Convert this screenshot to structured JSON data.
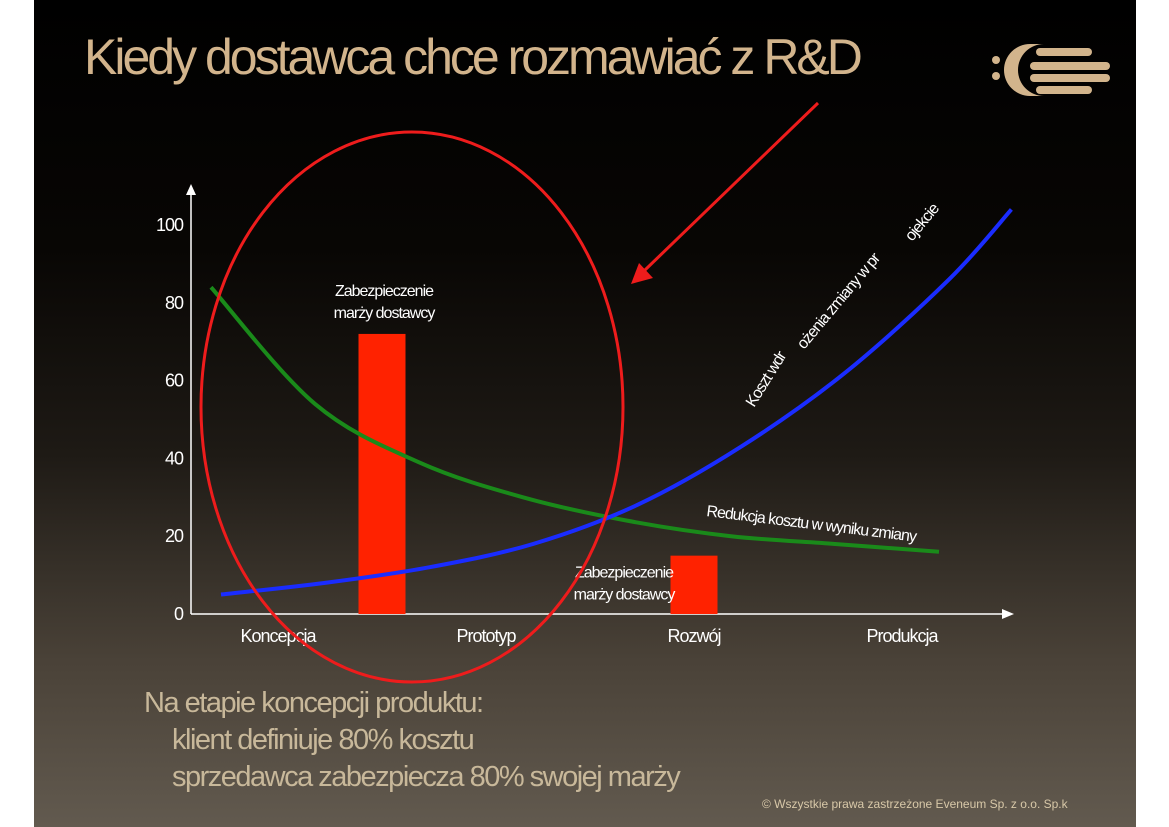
{
  "slide": {
    "title": "Kiedy dostawca chce rozmawiać z R&D",
    "bottom_lines": [
      "Na etapie koncepcji produktu:",
      "klient definiuje 80% kosztu",
      "sprzedawca zabezpiecza 80% swojej marży"
    ],
    "footer": "©  Wszystkie prawa zastrzeżone Eveneum Sp. z o.o. Sp.k",
    "colors": {
      "title": "#d2b48c",
      "bar": "#ff2200",
      "green_curve": "#1a8a1a",
      "blue_curve": "#1a2cff",
      "ellipse": "#ee1c1c",
      "arrow": "#ee1c1c",
      "logo": "#d2b48c"
    },
    "logo_icon": "eveneum-logo-icon"
  },
  "chart_data": {
    "type": "line",
    "title": "",
    "xlabel": "",
    "ylabel": "",
    "categories": [
      "Koncepcja",
      "Prototyp",
      "Rozwój",
      "Produkcja"
    ],
    "ylim": [
      0,
      100
    ],
    "yticks": [
      "0",
      "20",
      "40",
      "60",
      "80",
      "100"
    ],
    "series": [
      {
        "name": "Redukcja kosztu w wyniku zmiany",
        "color": "#1a8a1a",
        "x": [
          0.0,
          0.5,
          1.0,
          1.5,
          2.0,
          2.5,
          3.0,
          3.5
        ],
        "values": [
          84,
          54,
          39,
          30,
          24,
          20,
          18,
          16
        ]
      },
      {
        "name": "Koszt wdrożenia zmiany w projekcie",
        "name_parts": [
          "Koszt wdr",
          "ożenia zmiany w pr",
          "ojekcie"
        ],
        "color": "#1a2cff",
        "x": [
          0.0,
          0.5,
          1.0,
          1.5,
          2.0,
          2.5,
          3.0,
          3.5,
          3.8
        ],
        "values": [
          5,
          8,
          12,
          18,
          28,
          43,
          62,
          86,
          104
        ]
      }
    ],
    "bars": [
      {
        "label": "Zabezpieczenie marży dostawcy",
        "label_lines": [
          "Zabezpieczenie",
          "marży dostawcy"
        ],
        "x": 0.5,
        "value": 72
      },
      {
        "label": "Zabezpieczenie marży dostawcy",
        "label_lines": [
          "Zabezpieczenie",
          "marży dostawcy"
        ],
        "x": 2.0,
        "value": 15
      }
    ]
  }
}
